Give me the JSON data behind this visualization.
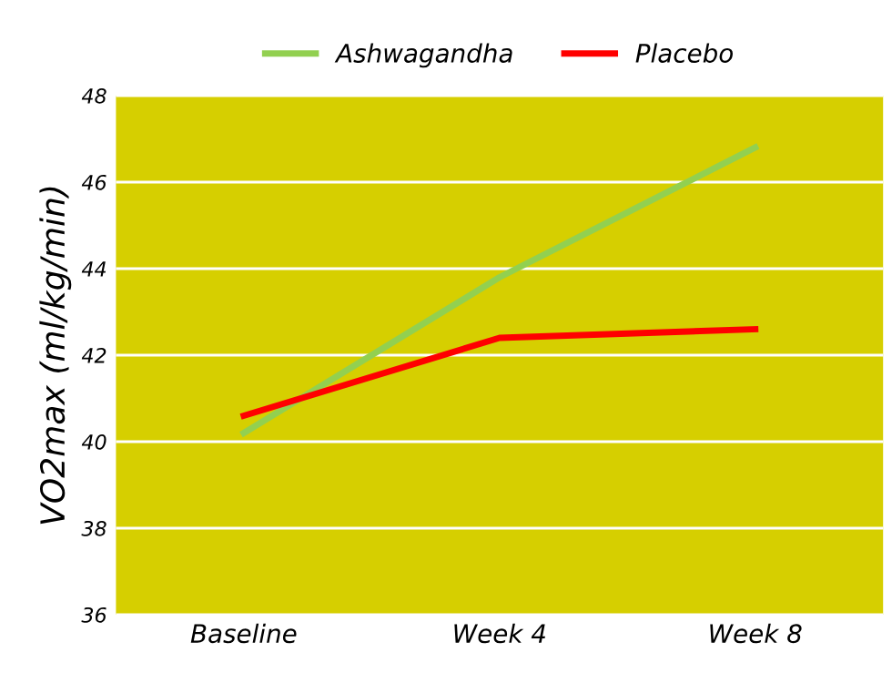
{
  "chart_data": {
    "type": "line",
    "ylabel": "VO2max (ml/kg/min)",
    "categories": [
      "Baseline",
      "Week 4",
      "Week 8"
    ],
    "series": [
      {
        "name": "Ashwagandha",
        "color": "#92d050",
        "values": [
          40.2,
          43.8,
          46.8
        ]
      },
      {
        "name": "Placebo",
        "color": "#ff0000",
        "values": [
          40.6,
          42.4,
          42.6
        ]
      }
    ],
    "ylim": [
      36,
      48
    ],
    "yticks": [
      36,
      38,
      40,
      42,
      44,
      46,
      48
    ],
    "grid": "y",
    "legend": "top",
    "marker": "none",
    "line_style": "solid"
  }
}
